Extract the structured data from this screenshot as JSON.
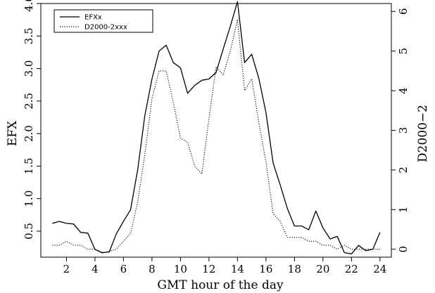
{
  "chart_data": {
    "type": "line",
    "xlabel": "GMT hour of the day",
    "ylabel_left": "EFX",
    "ylabel_right": "D2000−2",
    "xlim": [
      0.2,
      24.8
    ],
    "ylim_left": [
      0.1,
      4.0
    ],
    "ylim_right": [
      -0.2,
      6.2
    ],
    "xticks": [
      2,
      4,
      6,
      8,
      10,
      12,
      14,
      16,
      18,
      20,
      22,
      24
    ],
    "xtick_labels": [
      "2",
      "4",
      "6",
      "8",
      "10",
      "12",
      "14",
      "16",
      "18",
      "20",
      "22",
      "24"
    ],
    "yticks_left": [
      0.5,
      1.0,
      1.5,
      2.0,
      2.5,
      3.0,
      3.5,
      4.0
    ],
    "ytick_labels_left": [
      "0.5",
      "1.0",
      "1.5",
      "2.0",
      "2.5",
      "3.0",
      "3.5",
      "4.0"
    ],
    "yticks_right": [
      0,
      1,
      2,
      3,
      4,
      5,
      6
    ],
    "ytick_labels_right": [
      "0",
      "1",
      "2",
      "3",
      "4",
      "5",
      "6"
    ],
    "legend": {
      "position": "top-left",
      "entries": [
        "EFXx",
        "D2000-2xxx"
      ]
    },
    "grid": false,
    "series": [
      {
        "name": "EFXx",
        "axis": "left",
        "style": "solid",
        "color": "#000000",
        "x": [
          1,
          1.5,
          2,
          2.5,
          3,
          3.5,
          4,
          4.5,
          5,
          5.5,
          6,
          6.5,
          7,
          7.5,
          8,
          8.5,
          9,
          9.5,
          10,
          10.5,
          11,
          11.5,
          12,
          12.5,
          13,
          13.5,
          14,
          14.5,
          15,
          15.5,
          16,
          16.5,
          17,
          17.5,
          18,
          18.5,
          19,
          19.5,
          20,
          20.5,
          21,
          21.5,
          22,
          22.5,
          23,
          23.5,
          24
        ],
        "y": [
          0.62,
          0.65,
          0.62,
          0.61,
          0.48,
          0.47,
          0.22,
          0.17,
          0.18,
          0.46,
          0.65,
          0.83,
          1.45,
          2.28,
          2.84,
          3.27,
          3.36,
          3.09,
          3.01,
          2.62,
          2.74,
          2.82,
          2.84,
          2.94,
          3.3,
          3.65,
          4.03,
          3.09,
          3.22,
          2.85,
          2.32,
          1.55,
          1.21,
          0.85,
          0.58,
          0.58,
          0.52,
          0.81,
          0.55,
          0.38,
          0.42,
          0.17,
          0.15,
          0.28,
          0.2,
          0.22,
          0.48
        ]
      },
      {
        "name": "D2000-2xxx",
        "axis": "right",
        "style": "dotted",
        "color": "#000000",
        "x": [
          1,
          1.5,
          2,
          2.5,
          3,
          3.5,
          4,
          4.5,
          5,
          5.5,
          6,
          6.5,
          7,
          7.5,
          8,
          8.5,
          9,
          9.5,
          10,
          10.5,
          11,
          11.5,
          12,
          12.5,
          13,
          13.5,
          14,
          14.5,
          15,
          15.5,
          16,
          16.5,
          17,
          17.5,
          18,
          18.5,
          19,
          19.5,
          20,
          20.5,
          21,
          21.5,
          22,
          22.5,
          23,
          23.5,
          24
        ],
        "y": [
          0.1,
          0.1,
          0.2,
          0.1,
          0.1,
          0.0,
          0.0,
          -0.1,
          -0.05,
          0.0,
          0.2,
          0.4,
          1.2,
          2.4,
          3.8,
          4.5,
          4.5,
          3.7,
          2.8,
          2.7,
          2.1,
          1.9,
          3.3,
          4.6,
          4.4,
          5.0,
          5.8,
          4.0,
          4.3,
          3.2,
          2.2,
          0.9,
          0.7,
          0.3,
          0.3,
          0.3,
          0.2,
          0.2,
          0.1,
          0.1,
          0.0,
          0.1,
          0.0,
          0.0,
          0.0,
          0.0,
          0.0
        ]
      }
    ]
  }
}
